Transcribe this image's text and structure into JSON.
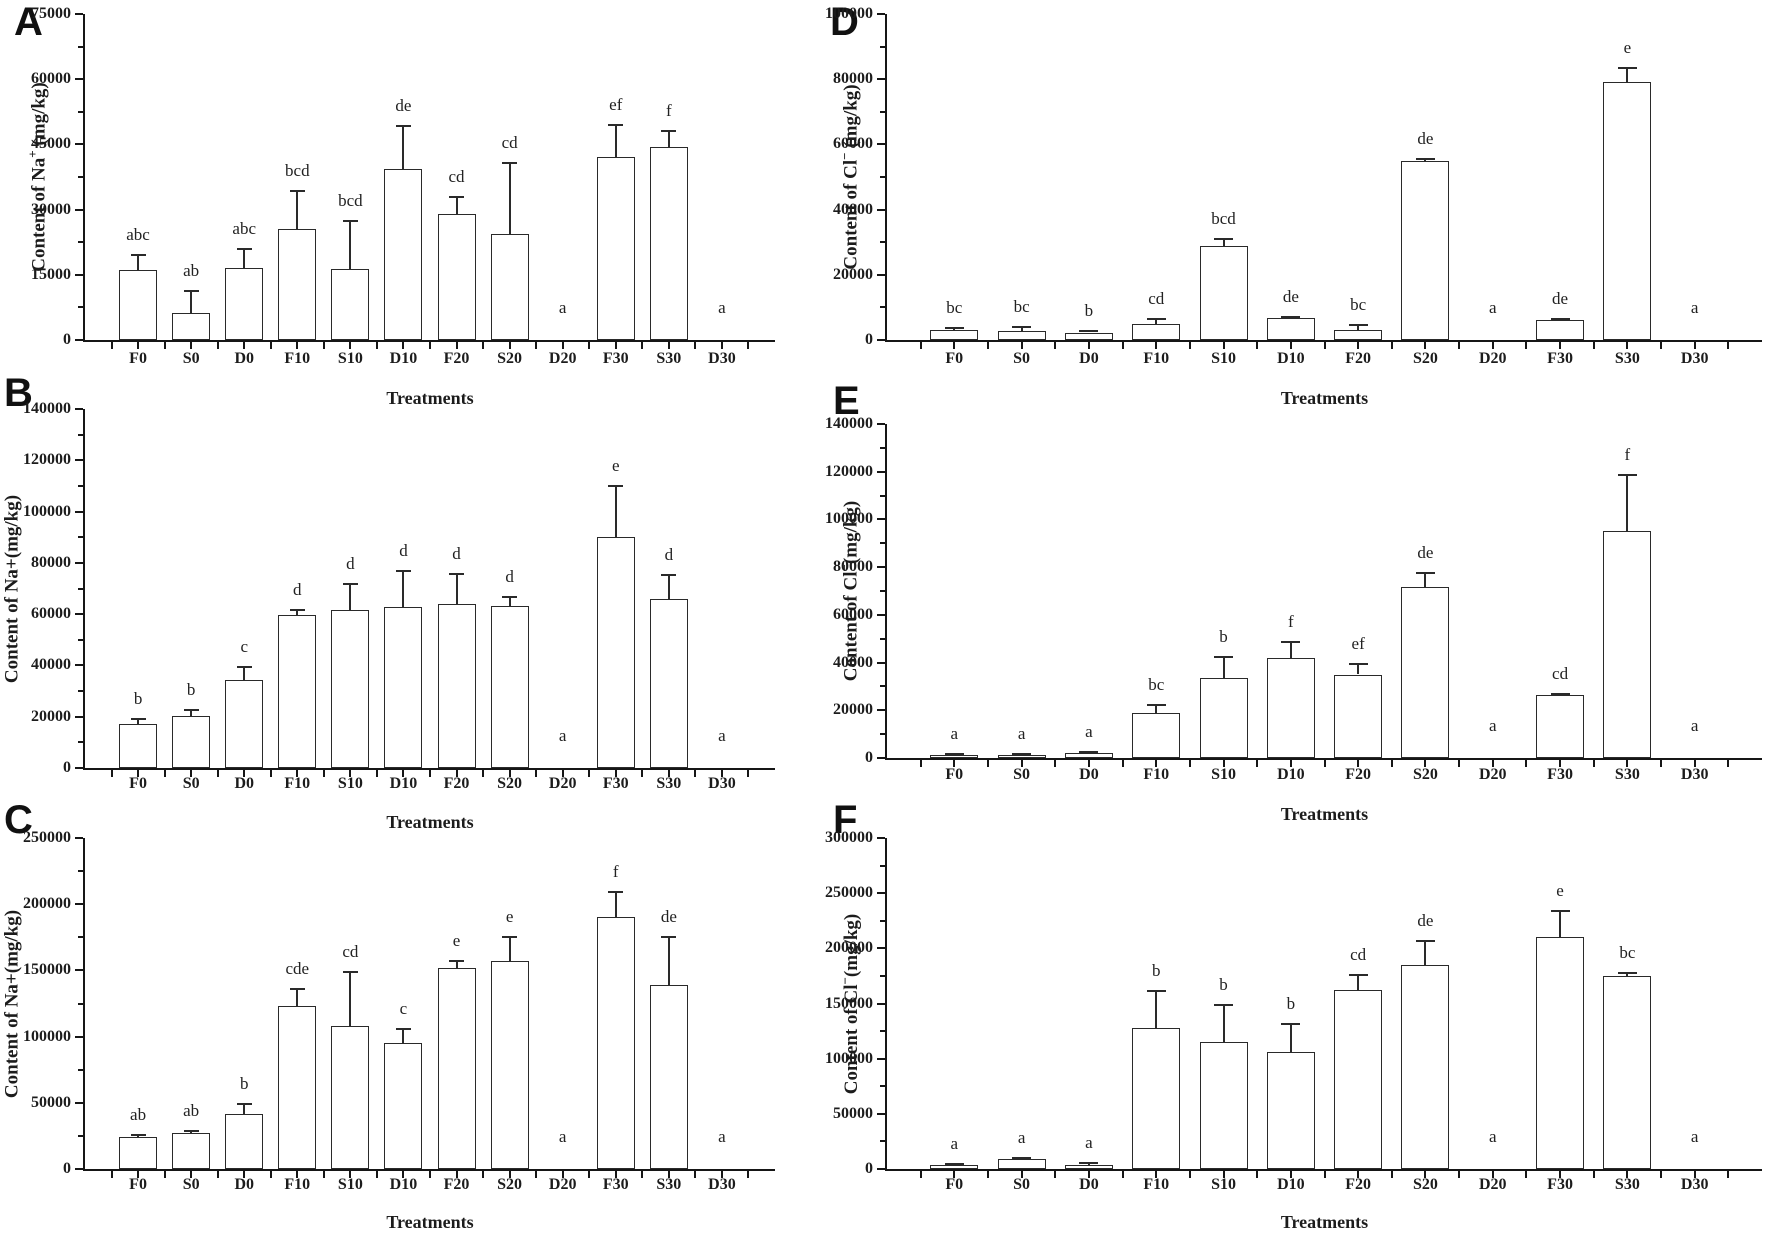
{
  "figure": {
    "background": "#ffffff",
    "axis_color": "#161616",
    "bar_fill": "#ffffff",
    "bar_stroke": "#2a2a2a",
    "xlabel": "Treatments",
    "categories": [
      "F0",
      "S0",
      "D0",
      "F10",
      "S10",
      "D10",
      "F20",
      "S20",
      "D20",
      "F30",
      "S30",
      "D30"
    ]
  },
  "chart_data": [
    {
      "type": "bar",
      "panel": "A",
      "ylabel": {
        "pre": "Content of Na",
        "sup": "+",
        "post": " (mg/kg)"
      },
      "xlabel": "Treatments",
      "categories": [
        "F0",
        "S0",
        "D0",
        "F10",
        "S10",
        "D10",
        "F20",
        "S20",
        "D20",
        "F30",
        "S30",
        "D30"
      ],
      "values": [
        16000,
        6200,
        16500,
        25500,
        16300,
        39300,
        29000,
        24300,
        0,
        42000,
        44300,
        0
      ],
      "errors": [
        3500,
        5000,
        4500,
        8800,
        11000,
        10000,
        4000,
        16400,
        0,
        7500,
        3800,
        0
      ],
      "sig_letters": [
        "abc",
        "ab",
        "abc",
        "bcd",
        "bcd",
        "de",
        "cd",
        "cd",
        "a",
        "ef",
        "f",
        "a"
      ],
      "ylim": [
        0,
        75000
      ],
      "ystep": 15000,
      "yticks": [
        "0",
        "15000",
        "30000",
        "45000",
        "60000",
        "75000"
      ],
      "grid": false,
      "legend": "none"
    },
    {
      "type": "bar",
      "panel": "B",
      "ylabel": {
        "pre": "Content of Na+",
        "sup": "",
        "post": "(mg/kg)"
      },
      "xlabel": "Treatments",
      "categories": [
        "F0",
        "S0",
        "D0",
        "F10",
        "S10",
        "D10",
        "F20",
        "S20",
        "D20",
        "F30",
        "S30",
        "D30"
      ],
      "values": [
        17000,
        20200,
        34500,
        59500,
        61500,
        62800,
        64000,
        63200,
        0,
        90000,
        66000,
        0
      ],
      "errors": [
        2300,
        2500,
        5000,
        2000,
        10300,
        14000,
        11500,
        3600,
        0,
        20000,
        9300,
        0
      ],
      "sig_letters": [
        "b",
        "b",
        "c",
        "d",
        "d",
        "d",
        "d",
        "d",
        "a",
        "e",
        "d",
        "a"
      ],
      "ylim": [
        0,
        140000
      ],
      "ystep": 20000,
      "yticks": [
        "0",
        "20000",
        "40000",
        "60000",
        "80000",
        "100000",
        "120000",
        "140000"
      ],
      "grid": false,
      "legend": "none"
    },
    {
      "type": "bar",
      "panel": "C",
      "ylabel": {
        "pre": "Content of Na+",
        "sup": "",
        "post": "(mg/kg)"
      },
      "xlabel": "Treatments",
      "categories": [
        "F0",
        "S0",
        "D0",
        "F10",
        "S10",
        "D10",
        "F20",
        "S20",
        "D20",
        "F30",
        "S30",
        "D30"
      ],
      "values": [
        24000,
        27000,
        41500,
        123000,
        108000,
        95000,
        152000,
        157000,
        0,
        190000,
        139000,
        0
      ],
      "errors": [
        1500,
        1800,
        7500,
        13000,
        41000,
        11000,
        5000,
        18000,
        0,
        19000,
        36000,
        0
      ],
      "sig_letters": [
        "ab",
        "ab",
        "b",
        "cde",
        "cd",
        "c",
        "e",
        "e",
        "a",
        "f",
        "de",
        "a"
      ],
      "ylim": [
        0,
        250000
      ],
      "ystep": 50000,
      "yticks": [
        "0",
        "50000",
        "100000",
        "150000",
        "200000",
        "250000"
      ],
      "grid": false,
      "legend": "none"
    },
    {
      "type": "bar",
      "panel": "D",
      "ylabel": {
        "pre": "Content of Cl",
        "sup": "−",
        "post": " (mg/kg)"
      },
      "xlabel": "Treatments",
      "categories": [
        "F0",
        "S0",
        "D0",
        "F10",
        "S10",
        "D10",
        "F20",
        "S20",
        "D20",
        "F30",
        "S30",
        "D30"
      ],
      "values": [
        3000,
        2800,
        2300,
        4900,
        28700,
        6700,
        3000,
        54800,
        0,
        6000,
        79000,
        0
      ],
      "errors": [
        600,
        1300,
        400,
        1400,
        2200,
        300,
        1600,
        600,
        0,
        400,
        4300,
        0
      ],
      "sig_letters": [
        "bc",
        "bc",
        "b",
        "cd",
        "bcd",
        "de",
        "bc",
        "de",
        "a",
        "de",
        "e",
        "a"
      ],
      "ylim": [
        0,
        100000
      ],
      "ystep": 20000,
      "yticks": [
        "0",
        "20000",
        "40000",
        "60000",
        "80000",
        "100000"
      ],
      "grid": false,
      "legend": "none"
    },
    {
      "type": "bar",
      "panel": "E",
      "ylabel": {
        "pre": "Content of Cl",
        "sup": "−",
        "post": "(mg/kg)"
      },
      "xlabel": "Treatments",
      "categories": [
        "F0",
        "S0",
        "D0",
        "F10",
        "S10",
        "D10",
        "F20",
        "S20",
        "D20",
        "F30",
        "S30",
        "D30"
      ],
      "values": [
        1300,
        1100,
        2300,
        19000,
        33500,
        42000,
        35000,
        71500,
        0,
        26200,
        95000,
        0
      ],
      "errors": [
        500,
        500,
        300,
        3400,
        8700,
        6800,
        4200,
        6000,
        0,
        500,
        23500,
        0
      ],
      "sig_letters": [
        "a",
        "a",
        "a",
        "bc",
        "b",
        "f",
        "ef",
        "de",
        "a",
        "cd",
        "f",
        "a"
      ],
      "ylim": [
        0,
        140000
      ],
      "ystep": 20000,
      "yticks": [
        "0",
        "20000",
        "40000",
        "60000",
        "80000",
        "100000",
        "120000",
        "140000"
      ],
      "grid": false,
      "legend": "none"
    },
    {
      "type": "bar",
      "panel": "F",
      "ylabel": {
        "pre": "Content of Cl",
        "sup": "−",
        "post": "(mg/kg)"
      },
      "xlabel": "Treatments",
      "categories": [
        "F0",
        "S0",
        "D0",
        "F10",
        "S10",
        "D10",
        "F20",
        "S20",
        "D20",
        "F30",
        "S30",
        "D30"
      ],
      "values": [
        3500,
        9000,
        4000,
        128000,
        115500,
        106000,
        162000,
        185000,
        0,
        210000,
        175000,
        0
      ],
      "errors": [
        800,
        1200,
        1000,
        33000,
        33000,
        25000,
        14000,
        22000,
        0,
        24000,
        2500,
        0
      ],
      "sig_letters": [
        "a",
        "a",
        "a",
        "b",
        "b",
        "b",
        "cd",
        "de",
        "a",
        "e",
        "bc",
        "a"
      ],
      "ylim": [
        0,
        300000
      ],
      "ystep": 50000,
      "yticks": [
        "0",
        "50000",
        "100000",
        "150000",
        "200000",
        "250000",
        "300000"
      ],
      "grid": false,
      "legend": "none"
    }
  ]
}
